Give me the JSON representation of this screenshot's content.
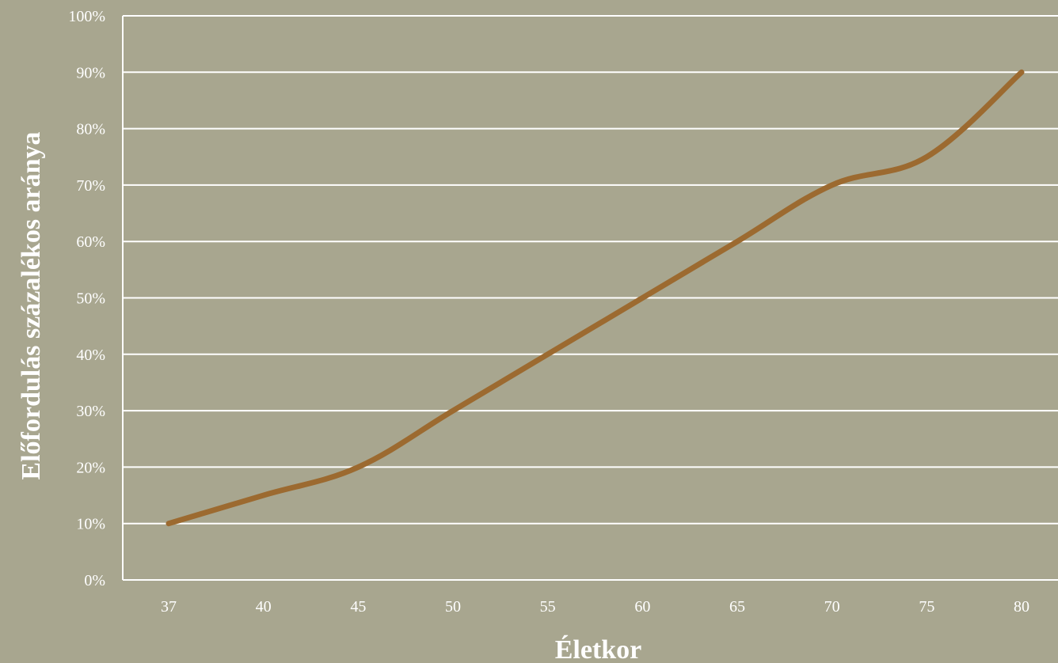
{
  "chart_data": {
    "type": "line",
    "categories": [
      "37",
      "40",
      "45",
      "50",
      "55",
      "60",
      "65",
      "70",
      "75",
      "80"
    ],
    "series": [
      {
        "values": [
          10,
          15,
          20,
          30,
          40,
          50,
          60,
          70,
          75,
          90
        ],
        "color": "#9c6a30"
      }
    ],
    "y_ticks": [
      "0%",
      "10%",
      "20%",
      "30%",
      "40%",
      "50%",
      "60%",
      "70%",
      "80%",
      "90%",
      "100%"
    ],
    "ylim": [
      0,
      100
    ],
    "xlabel": "Életkor",
    "ylabel": "Előfordulás százalékos aránya",
    "grid": true,
    "colors": {
      "background": "#a8a68f",
      "grid": "#ffffff",
      "text": "#ffffff"
    }
  }
}
